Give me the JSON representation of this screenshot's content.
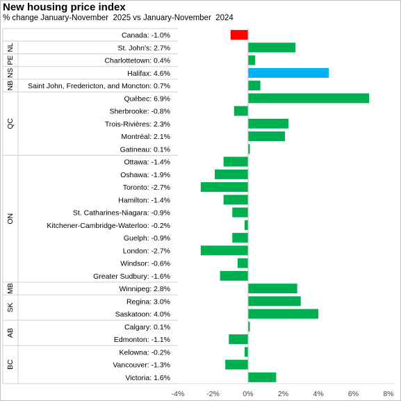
{
  "chart_data": {
    "type": "bar",
    "orientation": "horizontal",
    "title": "New housing price index",
    "subtitle": "% change January-November  2025 vs January-November  2024",
    "categories": [
      {
        "label": "Canada: -1.0%",
        "value": -1.0,
        "group": "",
        "color": "#ff0000"
      },
      {
        "label": "St. John's: 2.7%",
        "value": 2.7,
        "group": "NL",
        "color": "#00b050"
      },
      {
        "label": "Charlottetown: 0.4%",
        "value": 0.4,
        "group": "PE",
        "color": "#00b050"
      },
      {
        "label": "Halifax: 4.6%",
        "value": 4.6,
        "group": "NS",
        "color": "#00b0f0"
      },
      {
        "label": "Saint John, Fredericton, and Moncton: 0.7%",
        "value": 0.7,
        "group": "NB",
        "color": "#00b050"
      },
      {
        "label": "Québec: 6.9%",
        "value": 6.9,
        "group": "QC",
        "color": "#00b050"
      },
      {
        "label": "Sherbrooke: -0.8%",
        "value": -0.8,
        "group": "QC",
        "color": "#00b050"
      },
      {
        "label": "Trois-Rivières: 2.3%",
        "value": 2.3,
        "group": "QC",
        "color": "#00b050"
      },
      {
        "label": "Montréal: 2.1%",
        "value": 2.1,
        "group": "QC",
        "color": "#00b050"
      },
      {
        "label": "Gatineau: 0.1%",
        "value": 0.1,
        "group": "QC",
        "color": "#00b050"
      },
      {
        "label": "Ottawa: -1.4%",
        "value": -1.4,
        "group": "ON",
        "color": "#00b050"
      },
      {
        "label": "Oshawa: -1.9%",
        "value": -1.9,
        "group": "ON",
        "color": "#00b050"
      },
      {
        "label": "Toronto: -2.7%",
        "value": -2.7,
        "group": "ON",
        "color": "#00b050"
      },
      {
        "label": "Hamilton: -1.4%",
        "value": -1.4,
        "group": "ON",
        "color": "#00b050"
      },
      {
        "label": "St. Catharines-Niagara: -0.9%",
        "value": -0.9,
        "group": "ON",
        "color": "#00b050"
      },
      {
        "label": "Kitchener-Cambridge-Waterloo: -0.2%",
        "value": -0.2,
        "group": "ON",
        "color": "#00b050"
      },
      {
        "label": "Guelph: -0.9%",
        "value": -0.9,
        "group": "ON",
        "color": "#00b050"
      },
      {
        "label": "London: -2.7%",
        "value": -2.7,
        "group": "ON",
        "color": "#00b050"
      },
      {
        "label": "Windsor: -0.6%",
        "value": -0.6,
        "group": "ON",
        "color": "#00b050"
      },
      {
        "label": "Greater Sudbury: -1.6%",
        "value": -1.6,
        "group": "ON",
        "color": "#00b050"
      },
      {
        "label": "Winnipeg: 2.8%",
        "value": 2.8,
        "group": "MB",
        "color": "#00b050"
      },
      {
        "label": "Regina: 3.0%",
        "value": 3.0,
        "group": "SK",
        "color": "#00b050"
      },
      {
        "label": "Saskatoon: 4.0%",
        "value": 4.0,
        "group": "SK",
        "color": "#00b050"
      },
      {
        "label": "Calgary: 0.1%",
        "value": 0.1,
        "group": "AB",
        "color": "#00b050"
      },
      {
        "label": "Edmonton: -1.1%",
        "value": -1.1,
        "group": "AB",
        "color": "#00b050"
      },
      {
        "label": "Kelowna: -0.2%",
        "value": -0.2,
        "group": "BC",
        "color": "#00b050"
      },
      {
        "label": "Vancouver: -1.3%",
        "value": -1.3,
        "group": "BC",
        "color": "#00b050"
      },
      {
        "label": "Victoria: 1.6%",
        "value": 1.6,
        "group": "BC",
        "color": "#00b050"
      }
    ],
    "groups": [
      "NL",
      "PE",
      "NS",
      "NB",
      "QC",
      "ON",
      "MB",
      "SK",
      "AB",
      "BC"
    ],
    "x_ticks": [
      -4,
      -2,
      0,
      2,
      4,
      6,
      8
    ],
    "x_tick_labels": [
      "-4%",
      "-2%",
      "0%",
      "2%",
      "4%",
      "6%",
      "8%"
    ],
    "xlim": [
      -4,
      8
    ],
    "grid": false,
    "legend": "none"
  }
}
